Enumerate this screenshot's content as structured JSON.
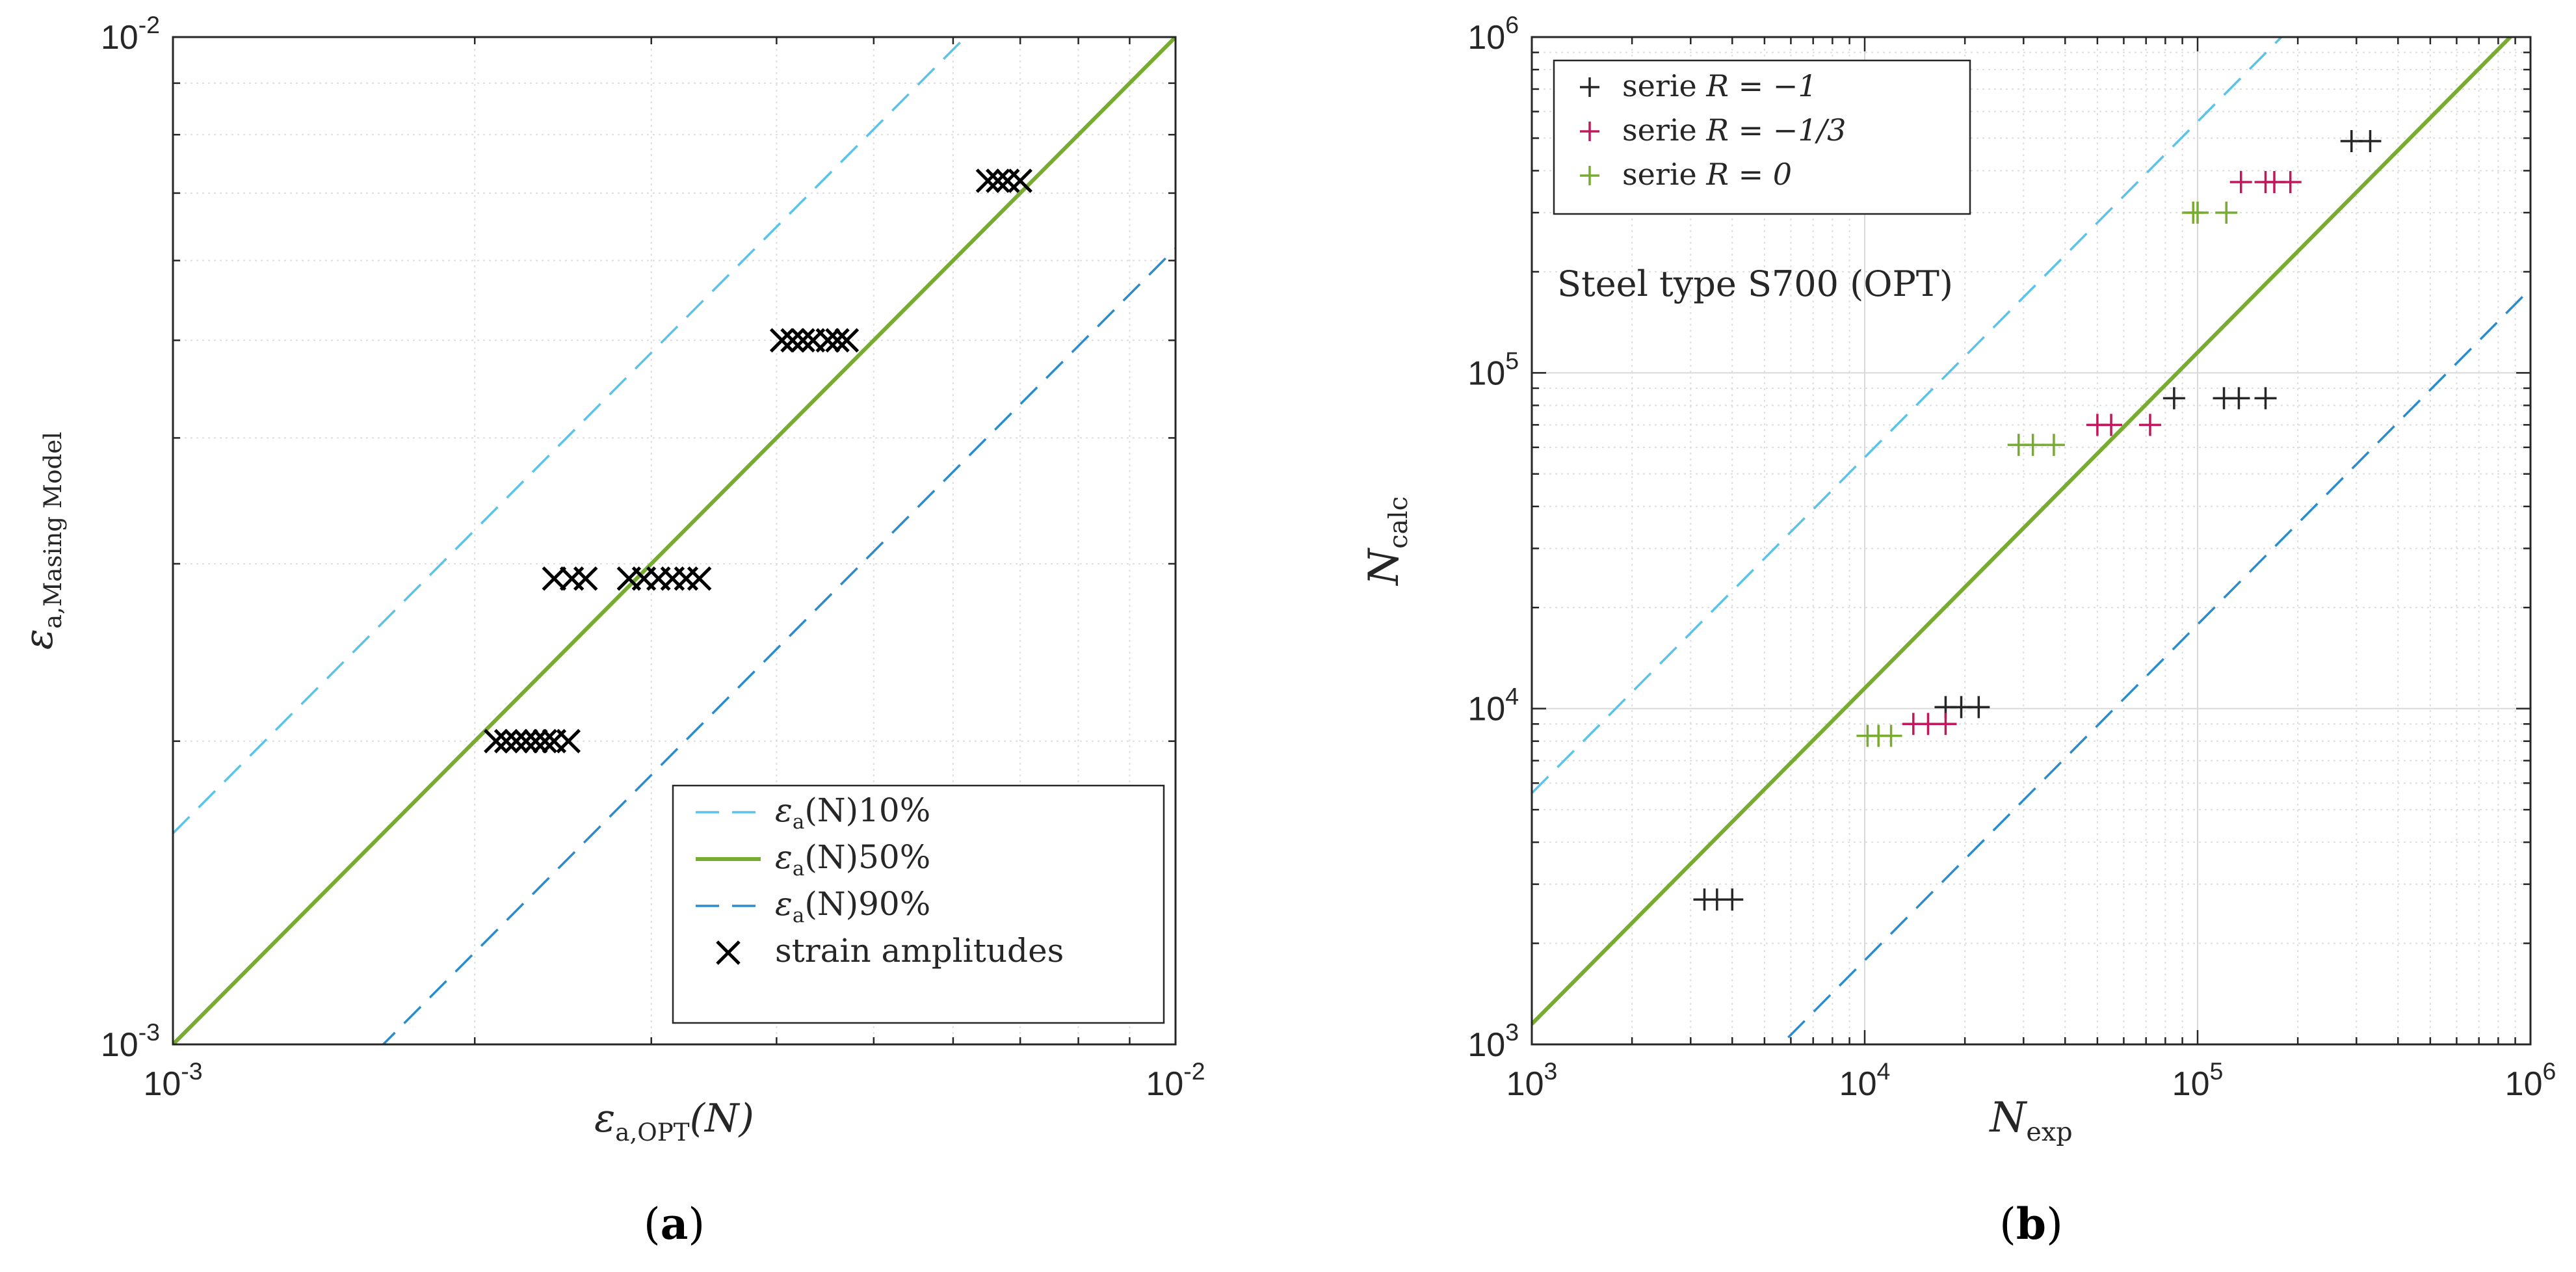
{
  "chart_data": [
    {
      "type": "scatter",
      "panel_label": "(a)",
      "scale": "log-log",
      "xlim": [
        0.001,
        0.01
      ],
      "ylim": [
        0.001,
        0.01
      ],
      "x_ticks": [
        {
          "value": 0.001,
          "base": "10",
          "exp": "-3"
        },
        {
          "value": 0.01,
          "base": "10",
          "exp": "-2"
        }
      ],
      "y_ticks": [
        {
          "value": 0.001,
          "base": "10",
          "exp": "-3"
        },
        {
          "value": 0.01,
          "base": "10",
          "exp": "-2"
        }
      ],
      "xlabel": {
        "main": "ε",
        "sub": "a,OPT",
        "tail": "(N)"
      },
      "ylabel": {
        "main": "ε",
        "sub": "a,Masing Model"
      },
      "grid": true,
      "legend_position": "bottom-right",
      "lines": [
        {
          "name": "10%",
          "label": "εa(N)10%",
          "factor": 1.62,
          "style": "dashed",
          "color": "#5bc3e8"
        },
        {
          "name": "50%",
          "label": "εa(N)50%",
          "factor": 1.0,
          "style": "solid",
          "color": "#77ac30"
        },
        {
          "name": "90%",
          "label": "εa(N)90%",
          "factor": 0.617,
          "style": "dashed",
          "color": "#2b8ccd"
        }
      ],
      "legend": [
        {
          "key": "10%",
          "text_main": "ε",
          "text_sub": "a",
          "text_tail": "(N)10%"
        },
        {
          "key": "50%",
          "text_main": "ε",
          "text_sub": "a",
          "text_tail": "(N)50%"
        },
        {
          "key": "90%",
          "text_main": "ε",
          "text_sub": "a",
          "text_tail": "(N)90%"
        },
        {
          "key": "points",
          "text": "strain amplitudes"
        }
      ],
      "series": [
        {
          "name": "strain amplitudes",
          "marker": "x",
          "color": "#000000",
          "points": [
            [
              0.0021,
              0.002
            ],
            [
              0.00215,
              0.002
            ],
            [
              0.0022,
              0.002
            ],
            [
              0.00225,
              0.002
            ],
            [
              0.0023,
              0.002
            ],
            [
              0.00235,
              0.002
            ],
            [
              0.0024,
              0.002
            ],
            [
              0.00248,
              0.002
            ],
            [
              0.0024,
              0.0029
            ],
            [
              0.0025,
              0.0029
            ],
            [
              0.00258,
              0.0029
            ],
            [
              0.00285,
              0.0029
            ],
            [
              0.00295,
              0.0029
            ],
            [
              0.00305,
              0.0029
            ],
            [
              0.00315,
              0.0029
            ],
            [
              0.00325,
              0.0029
            ],
            [
              0.00335,
              0.0029
            ],
            [
              0.00405,
              0.005
            ],
            [
              0.00415,
              0.005
            ],
            [
              0.00425,
              0.005
            ],
            [
              0.00435,
              0.005
            ],
            [
              0.0045,
              0.005
            ],
            [
              0.0046,
              0.005
            ],
            [
              0.0047,
              0.005
            ],
            [
              0.0065,
              0.0072
            ],
            [
              0.00665,
              0.0072
            ],
            [
              0.0068,
              0.0072
            ],
            [
              0.007,
              0.0072
            ]
          ]
        }
      ]
    },
    {
      "type": "scatter",
      "panel_label": "(b)",
      "scale": "log-log",
      "xlim": [
        1000,
        1000000
      ],
      "ylim": [
        1000,
        1000000
      ],
      "x_ticks": [
        {
          "value": 1000,
          "base": "10",
          "exp": "3"
        },
        {
          "value": 10000,
          "base": "10",
          "exp": "4"
        },
        {
          "value": 100000,
          "base": "10",
          "exp": "5"
        },
        {
          "value": 1000000,
          "base": "10",
          "exp": "6"
        }
      ],
      "y_ticks": [
        {
          "value": 1000,
          "base": "10",
          "exp": "3"
        },
        {
          "value": 10000,
          "base": "10",
          "exp": "4"
        },
        {
          "value": 100000,
          "base": "10",
          "exp": "5"
        },
        {
          "value": 1000000,
          "base": "10",
          "exp": "6"
        }
      ],
      "xlabel": {
        "main": "N",
        "sub": "exp"
      },
      "ylabel": {
        "main": "N",
        "sub": "calc"
      },
      "annotation": "Steel type S700 (OPT)",
      "grid": true,
      "legend_position": "top-left",
      "lines": [
        {
          "name": "10%",
          "factor": 5.6,
          "style": "dashed",
          "color": "#5bc3e8"
        },
        {
          "name": "50%",
          "factor": 1.15,
          "style": "solid",
          "color": "#77ac30"
        },
        {
          "name": "90%",
          "factor": 0.178,
          "style": "dashed",
          "color": "#2b8ccd"
        }
      ],
      "legend": [
        {
          "key": "R=-1",
          "text_main": "serie ",
          "text_tail": "R = −1"
        },
        {
          "key": "R=-1/3",
          "text_main": "serie ",
          "text_tail": "R = −1/3"
        },
        {
          "key": "R=0",
          "text_main": "serie ",
          "text_tail": "R = 0"
        }
      ],
      "series": [
        {
          "name": "serie R = -1",
          "marker": "+",
          "color": "#262626",
          "points": [
            [
              3300,
              2700
            ],
            [
              3600,
              2700
            ],
            [
              4000,
              2700
            ],
            [
              17500,
              10100
            ],
            [
              19500,
              10100
            ],
            [
              22000,
              10100
            ],
            [
              85000,
              84000
            ],
            [
              120000,
              84000
            ],
            [
              133000,
              84000
            ],
            [
              160000,
              84000
            ],
            [
              290000,
              490000
            ],
            [
              330000,
              490000
            ]
          ]
        },
        {
          "name": "serie R = -1/3",
          "marker": "+",
          "color": "#c2185b",
          "points": [
            [
              14000,
              9000
            ],
            [
              15500,
              9000
            ],
            [
              17500,
              9000
            ],
            [
              50000,
              70000
            ],
            [
              55000,
              70000
            ],
            [
              72000,
              70000
            ],
            [
              135000,
              370000
            ],
            [
              160000,
              370000
            ],
            [
              170000,
              370000
            ],
            [
              190000,
              370000
            ]
          ]
        },
        {
          "name": "serie R = 0",
          "marker": "+",
          "color": "#77ac30",
          "points": [
            [
              10200,
              8300
            ],
            [
              11000,
              8300
            ],
            [
              12000,
              8300
            ],
            [
              29000,
              61000
            ],
            [
              32000,
              61000
            ],
            [
              37000,
              61000
            ],
            [
              97000,
              300000
            ],
            [
              100000,
              300000
            ],
            [
              122000,
              300000
            ]
          ]
        }
      ]
    }
  ]
}
